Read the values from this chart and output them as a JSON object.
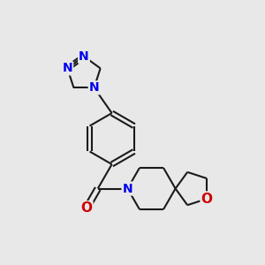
{
  "background_color": "#e8e8e8",
  "bond_color": "#1a1a1a",
  "N_color": "#0000ee",
  "O_color": "#cc0000",
  "bond_lw": 1.5,
  "font_size": 10,
  "figsize": [
    3.0,
    3.0
  ],
  "dpi": 100,
  "xlim": [
    -0.5,
    5.5
  ],
  "ylim": [
    -0.5,
    5.8
  ]
}
